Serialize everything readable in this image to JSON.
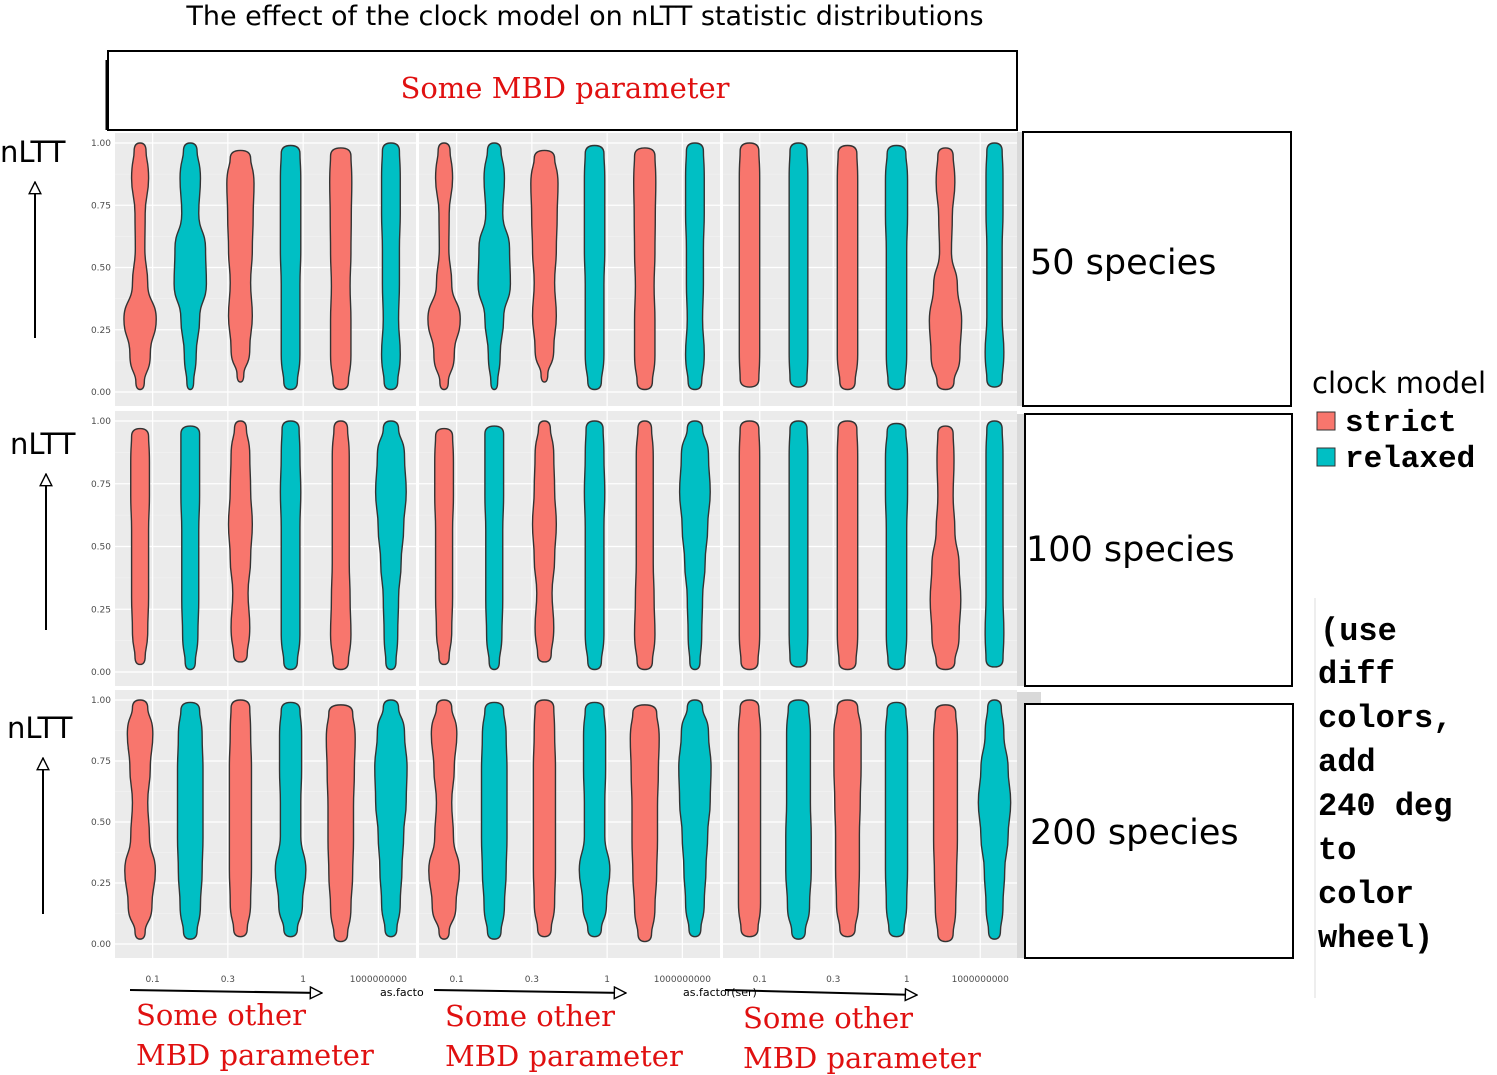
{
  "title": "The effect of the clock model  on nLTT statistic distributions",
  "top_strip_label": "Some  MBD  parameter",
  "row_strip_labels": [
    "50 species",
    "100 species",
    "200 species"
  ],
  "y_axis_label": "nLTT",
  "bottom_label_line1": "Some  other",
  "bottom_label_line2": "MBD  parameter",
  "xlabel_fragments": [
    "as.facto",
    "as.factor(ser)"
  ],
  "legend": {
    "title": "clock model",
    "items": [
      {
        "label": "strict",
        "color": "#F8766D"
      },
      {
        "label": "relaxed",
        "color": "#00BFC4"
      }
    ]
  },
  "note_lines": [
    "(use",
    "diff",
    "colors,",
    "add",
    "240 deg",
    "to",
    "color",
    "wheel)"
  ],
  "colors": {
    "strict": "#F8766D",
    "relaxed": "#00BFC4",
    "panel_bg": "#EBEBEB",
    "strip_bg": "#D9D9D9",
    "annotation_red": "#E01010"
  },
  "chart_data": {
    "type": "violin",
    "title": "The effect of the clock model  on nLTT statistic distributions",
    "xlabel": "as.factor(ser)",
    "ylabel": "nLTT",
    "ylim": [
      0,
      1
    ],
    "y_ticks": [
      "0.00",
      "0.25",
      "0.50",
      "0.75",
      "1.00"
    ],
    "categories": [
      "0.1",
      "0.3",
      "1",
      "1000000000"
    ],
    "rows": [
      "50 species",
      "100 species",
      "200 species"
    ],
    "series": [
      {
        "name": "strict",
        "color": "#F8766D"
      },
      {
        "name": "relaxed",
        "color": "#00BFC4"
      }
    ],
    "legend_position": "right",
    "panels": [
      [
        {
          "violins": [
            {
              "series": "strict",
              "min": 0.01,
              "max": 1.0,
              "widths": [
                0.25,
                0.6,
                0.95,
                0.45,
                0.28,
                0.3,
                0.5,
                0.35
              ]
            },
            {
              "series": "relaxed",
              "min": 0.01,
              "max": 1.0,
              "widths": [
                0.2,
                0.35,
                0.55,
                0.95,
                0.9,
                0.5,
                0.6,
                0.4
              ]
            },
            {
              "series": "strict",
              "min": 0.04,
              "max": 0.97,
              "widths": [
                0.2,
                0.55,
                0.7,
                0.6,
                0.7,
                0.75,
                0.8,
                0.6
              ]
            },
            {
              "series": "relaxed",
              "min": 0.01,
              "max": 0.99,
              "widths": [
                0.4,
                0.55,
                0.55,
                0.55,
                0.6,
                0.6,
                0.6,
                0.55
              ]
            },
            {
              "series": "strict",
              "min": 0.01,
              "max": 0.98,
              "widths": [
                0.45,
                0.6,
                0.6,
                0.55,
                0.6,
                0.62,
                0.65,
                0.6
              ]
            },
            {
              "series": "relaxed",
              "min": 0.01,
              "max": 1.0,
              "widths": [
                0.4,
                0.55,
                0.45,
                0.5,
                0.5,
                0.55,
                0.55,
                0.5
              ]
            }
          ]
        },
        {
          "violins": [
            {
              "series": "strict",
              "min": 0.01,
              "max": 1.0,
              "widths": [
                0.25,
                0.6,
                0.95,
                0.45,
                0.28,
                0.3,
                0.5,
                0.35
              ]
            },
            {
              "series": "relaxed",
              "min": 0.01,
              "max": 1.0,
              "widths": [
                0.2,
                0.35,
                0.55,
                0.95,
                0.9,
                0.5,
                0.6,
                0.4
              ]
            },
            {
              "series": "strict",
              "min": 0.04,
              "max": 0.97,
              "widths": [
                0.2,
                0.55,
                0.7,
                0.6,
                0.7,
                0.75,
                0.8,
                0.6
              ]
            },
            {
              "series": "relaxed",
              "min": 0.01,
              "max": 0.99,
              "widths": [
                0.4,
                0.55,
                0.55,
                0.55,
                0.6,
                0.6,
                0.6,
                0.55
              ]
            },
            {
              "series": "strict",
              "min": 0.01,
              "max": 0.98,
              "widths": [
                0.45,
                0.6,
                0.6,
                0.55,
                0.6,
                0.62,
                0.65,
                0.6
              ]
            },
            {
              "series": "relaxed",
              "min": 0.01,
              "max": 1.0,
              "widths": [
                0.4,
                0.55,
                0.45,
                0.5,
                0.5,
                0.55,
                0.55,
                0.5
              ]
            }
          ]
        },
        {
          "violins": [
            {
              "series": "strict",
              "min": 0.02,
              "max": 1.0,
              "widths": [
                0.55,
                0.6,
                0.6,
                0.6,
                0.6,
                0.6,
                0.6,
                0.55
              ]
            },
            {
              "series": "relaxed",
              "min": 0.02,
              "max": 1.0,
              "widths": [
                0.5,
                0.55,
                0.55,
                0.55,
                0.55,
                0.55,
                0.55,
                0.5
              ]
            },
            {
              "series": "strict",
              "min": 0.01,
              "max": 0.99,
              "widths": [
                0.45,
                0.6,
                0.6,
                0.6,
                0.6,
                0.6,
                0.6,
                0.55
              ]
            },
            {
              "series": "relaxed",
              "min": 0.01,
              "max": 0.99,
              "widths": [
                0.5,
                0.6,
                0.6,
                0.6,
                0.6,
                0.65,
                0.65,
                0.55
              ]
            },
            {
              "series": "strict",
              "min": 0.01,
              "max": 0.98,
              "widths": [
                0.5,
                0.85,
                0.95,
                0.7,
                0.35,
                0.4,
                0.55,
                0.45
              ]
            },
            {
              "series": "relaxed",
              "min": 0.02,
              "max": 1.0,
              "widths": [
                0.45,
                0.55,
                0.45,
                0.45,
                0.45,
                0.5,
                0.5,
                0.45
              ]
            }
          ]
        }
      ],
      [
        {
          "violins": [
            {
              "series": "strict",
              "min": 0.03,
              "max": 0.97,
              "widths": [
                0.3,
                0.45,
                0.5,
                0.5,
                0.5,
                0.55,
                0.55,
                0.5
              ]
            },
            {
              "series": "relaxed",
              "min": 0.01,
              "max": 0.98,
              "widths": [
                0.3,
                0.45,
                0.5,
                0.5,
                0.5,
                0.55,
                0.55,
                0.55
              ]
            },
            {
              "series": "strict",
              "min": 0.04,
              "max": 1.0,
              "widths": [
                0.4,
                0.55,
                0.45,
                0.6,
                0.7,
                0.6,
                0.55,
                0.35
              ]
            },
            {
              "series": "relaxed",
              "min": 0.01,
              "max": 1.0,
              "widths": [
                0.4,
                0.55,
                0.55,
                0.55,
                0.55,
                0.6,
                0.55,
                0.5
              ]
            },
            {
              "series": "strict",
              "min": 0.01,
              "max": 1.0,
              "widths": [
                0.45,
                0.6,
                0.55,
                0.5,
                0.5,
                0.5,
                0.5,
                0.4
              ]
            },
            {
              "series": "relaxed",
              "min": 0.01,
              "max": 1.0,
              "widths": [
                0.3,
                0.4,
                0.45,
                0.6,
                0.75,
                0.9,
                0.8,
                0.45
              ]
            }
          ]
        },
        {
          "violins": [
            {
              "series": "strict",
              "min": 0.03,
              "max": 0.97,
              "widths": [
                0.3,
                0.45,
                0.5,
                0.5,
                0.5,
                0.55,
                0.55,
                0.5
              ]
            },
            {
              "series": "relaxed",
              "min": 0.01,
              "max": 0.98,
              "widths": [
                0.3,
                0.45,
                0.5,
                0.5,
                0.5,
                0.55,
                0.55,
                0.55
              ]
            },
            {
              "series": "strict",
              "min": 0.04,
              "max": 1.0,
              "widths": [
                0.4,
                0.55,
                0.45,
                0.6,
                0.7,
                0.6,
                0.55,
                0.35
              ]
            },
            {
              "series": "relaxed",
              "min": 0.01,
              "max": 1.0,
              "widths": [
                0.4,
                0.55,
                0.55,
                0.55,
                0.55,
                0.6,
                0.55,
                0.5
              ]
            },
            {
              "series": "strict",
              "min": 0.01,
              "max": 1.0,
              "widths": [
                0.45,
                0.6,
                0.55,
                0.5,
                0.5,
                0.5,
                0.5,
                0.4
              ]
            },
            {
              "series": "relaxed",
              "min": 0.01,
              "max": 1.0,
              "widths": [
                0.3,
                0.4,
                0.45,
                0.6,
                0.75,
                0.9,
                0.8,
                0.45
              ]
            }
          ]
        },
        {
          "violins": [
            {
              "series": "strict",
              "min": 0.01,
              "max": 1.0,
              "widths": [
                0.5,
                0.6,
                0.6,
                0.6,
                0.6,
                0.6,
                0.6,
                0.55
              ]
            },
            {
              "series": "relaxed",
              "min": 0.02,
              "max": 1.0,
              "widths": [
                0.5,
                0.55,
                0.55,
                0.55,
                0.55,
                0.55,
                0.55,
                0.5
              ]
            },
            {
              "series": "strict",
              "min": 0.01,
              "max": 1.0,
              "widths": [
                0.5,
                0.6,
                0.6,
                0.6,
                0.6,
                0.6,
                0.6,
                0.55
              ]
            },
            {
              "series": "relaxed",
              "min": 0.01,
              "max": 0.99,
              "widths": [
                0.5,
                0.6,
                0.6,
                0.6,
                0.6,
                0.65,
                0.65,
                0.55
              ]
            },
            {
              "series": "strict",
              "min": 0.01,
              "max": 0.98,
              "widths": [
                0.55,
                0.8,
                0.9,
                0.8,
                0.55,
                0.45,
                0.5,
                0.45
              ]
            },
            {
              "series": "relaxed",
              "min": 0.02,
              "max": 1.0,
              "widths": [
                0.5,
                0.55,
                0.5,
                0.5,
                0.5,
                0.5,
                0.5,
                0.45
              ]
            }
          ]
        }
      ],
      [
        {
          "violins": [
            {
              "series": "strict",
              "min": 0.02,
              "max": 1.0,
              "widths": [
                0.3,
                0.7,
                0.9,
                0.55,
                0.45,
                0.6,
                0.75,
                0.45
              ]
            },
            {
              "series": "relaxed",
              "min": 0.02,
              "max": 0.99,
              "widths": [
                0.4,
                0.6,
                0.7,
                0.75,
                0.75,
                0.75,
                0.7,
                0.55
              ]
            },
            {
              "series": "strict",
              "min": 0.03,
              "max": 1.0,
              "widths": [
                0.4,
                0.6,
                0.65,
                0.65,
                0.65,
                0.65,
                0.6,
                0.55
              ]
            },
            {
              "series": "relaxed",
              "min": 0.03,
              "max": 0.99,
              "widths": [
                0.4,
                0.7,
                0.9,
                0.6,
                0.6,
                0.65,
                0.65,
                0.55
              ]
            },
            {
              "series": "strict",
              "min": 0.01,
              "max": 0.98,
              "widths": [
                0.4,
                0.6,
                0.7,
                0.75,
                0.75,
                0.8,
                0.85,
                0.7
              ]
            },
            {
              "series": "relaxed",
              "min": 0.03,
              "max": 1.0,
              "widths": [
                0.35,
                0.55,
                0.65,
                0.75,
                0.9,
                0.95,
                0.8,
                0.45
              ]
            }
          ]
        },
        {
          "violins": [
            {
              "series": "strict",
              "min": 0.02,
              "max": 1.0,
              "widths": [
                0.3,
                0.7,
                0.9,
                0.55,
                0.45,
                0.6,
                0.75,
                0.45
              ]
            },
            {
              "series": "relaxed",
              "min": 0.02,
              "max": 0.99,
              "widths": [
                0.4,
                0.6,
                0.7,
                0.75,
                0.75,
                0.75,
                0.7,
                0.55
              ]
            },
            {
              "series": "strict",
              "min": 0.03,
              "max": 1.0,
              "widths": [
                0.4,
                0.6,
                0.65,
                0.65,
                0.65,
                0.65,
                0.6,
                0.55
              ]
            },
            {
              "series": "relaxed",
              "min": 0.03,
              "max": 0.99,
              "widths": [
                0.4,
                0.7,
                0.9,
                0.6,
                0.6,
                0.65,
                0.65,
                0.55
              ]
            },
            {
              "series": "strict",
              "min": 0.01,
              "max": 0.98,
              "widths": [
                0.4,
                0.6,
                0.7,
                0.75,
                0.75,
                0.8,
                0.85,
                0.7
              ]
            },
            {
              "series": "relaxed",
              "min": 0.03,
              "max": 1.0,
              "widths": [
                0.35,
                0.55,
                0.65,
                0.75,
                0.9,
                0.95,
                0.8,
                0.45
              ]
            }
          ]
        },
        {
          "violins": [
            {
              "series": "strict",
              "min": 0.03,
              "max": 1.0,
              "widths": [
                0.5,
                0.65,
                0.65,
                0.65,
                0.65,
                0.65,
                0.65,
                0.55
              ]
            },
            {
              "series": "relaxed",
              "min": 0.02,
              "max": 1.0,
              "widths": [
                0.4,
                0.65,
                0.75,
                0.75,
                0.7,
                0.7,
                0.7,
                0.6
              ]
            },
            {
              "series": "strict",
              "min": 0.03,
              "max": 1.0,
              "widths": [
                0.45,
                0.65,
                0.7,
                0.7,
                0.75,
                0.8,
                0.8,
                0.6
              ]
            },
            {
              "series": "relaxed",
              "min": 0.03,
              "max": 0.99,
              "widths": [
                0.45,
                0.6,
                0.65,
                0.65,
                0.65,
                0.65,
                0.65,
                0.55
              ]
            },
            {
              "series": "strict",
              "min": 0.01,
              "max": 0.98,
              "widths": [
                0.45,
                0.6,
                0.65,
                0.7,
                0.7,
                0.7,
                0.7,
                0.6
              ]
            },
            {
              "series": "relaxed",
              "min": 0.02,
              "max": 1.0,
              "widths": [
                0.35,
                0.5,
                0.6,
                0.8,
                0.95,
                0.8,
                0.55,
                0.4
              ]
            }
          ]
        }
      ]
    ]
  }
}
